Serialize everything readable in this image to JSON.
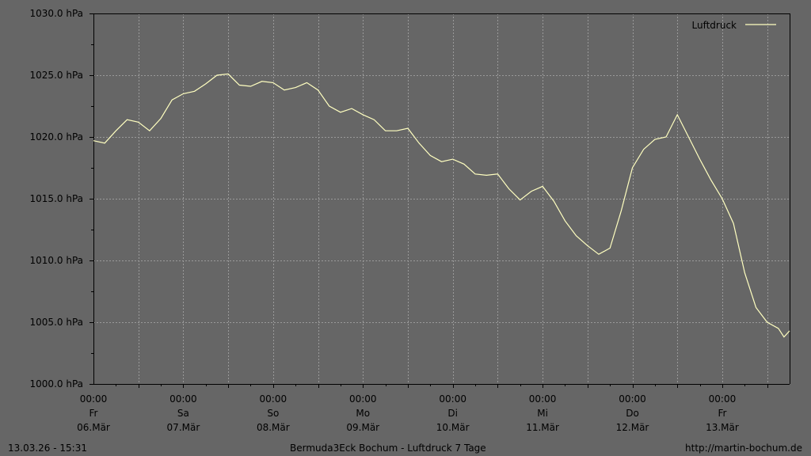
{
  "footer": {
    "timestamp": "13.03.26 - 15:31",
    "title": "Bermuda3Eck Bochum - Luftdruck 7 Tage",
    "url": "http://martin-bochum.de"
  },
  "chart_data": {
    "type": "line",
    "ylim": [
      1000,
      1030
    ],
    "y_ticks": [
      1000,
      1005,
      1010,
      1015,
      1020,
      1025,
      1030
    ],
    "y_tick_labels": [
      "1000.0 hPa",
      "1005.0 hPa",
      "1010.0 hPa",
      "1015.0 hPa",
      "1020.0 hPa",
      "1025.0 hPa",
      "1030.0 hPa"
    ],
    "x_start": "2026-03-06T00:00",
    "x_end": "2026-03-13T18:00",
    "x_ticks": [
      {
        "time": "00:00",
        "day": "Fr",
        "date": "06.Mär"
      },
      {
        "time": "00:00",
        "day": "Sa",
        "date": "07.Mär"
      },
      {
        "time": "00:00",
        "day": "So",
        "date": "08.Mär"
      },
      {
        "time": "00:00",
        "day": "Mo",
        "date": "09.Mär"
      },
      {
        "time": "00:00",
        "day": "Di",
        "date": "10.Mär"
      },
      {
        "time": "00:00",
        "day": "Mi",
        "date": "11.Mär"
      },
      {
        "time": "00:00",
        "day": "Do",
        "date": "12.Mär"
      },
      {
        "time": "00:00",
        "day": "Fr",
        "date": "13.Mär"
      }
    ],
    "grid": true,
    "legend_position": "top-right",
    "line_color": "#ffffc0",
    "series": [
      {
        "name": "Luftdruck",
        "points": [
          [
            "2026-03-06T00:00",
            1019.7
          ],
          [
            "2026-03-06T03:00",
            1019.5
          ],
          [
            "2026-03-06T06:00",
            1020.5
          ],
          [
            "2026-03-06T09:00",
            1021.4
          ],
          [
            "2026-03-06T12:00",
            1021.2
          ],
          [
            "2026-03-06T15:00",
            1020.5
          ],
          [
            "2026-03-06T18:00",
            1021.5
          ],
          [
            "2026-03-06T21:00",
            1023.0
          ],
          [
            "2026-03-07T00:00",
            1023.5
          ],
          [
            "2026-03-07T03:00",
            1023.7
          ],
          [
            "2026-03-07T06:00",
            1024.3
          ],
          [
            "2026-03-07T09:00",
            1025.0
          ],
          [
            "2026-03-07T12:00",
            1025.1
          ],
          [
            "2026-03-07T15:00",
            1024.2
          ],
          [
            "2026-03-07T18:00",
            1024.1
          ],
          [
            "2026-03-07T21:00",
            1024.5
          ],
          [
            "2026-03-08T00:00",
            1024.4
          ],
          [
            "2026-03-08T03:00",
            1023.8
          ],
          [
            "2026-03-08T06:00",
            1024.0
          ],
          [
            "2026-03-08T09:00",
            1024.4
          ],
          [
            "2026-03-08T12:00",
            1023.8
          ],
          [
            "2026-03-08T15:00",
            1022.5
          ],
          [
            "2026-03-08T18:00",
            1022.0
          ],
          [
            "2026-03-08T21:00",
            1022.3
          ],
          [
            "2026-03-09T00:00",
            1021.8
          ],
          [
            "2026-03-09T03:00",
            1021.4
          ],
          [
            "2026-03-09T06:00",
            1020.5
          ],
          [
            "2026-03-09T09:00",
            1020.5
          ],
          [
            "2026-03-09T12:00",
            1020.7
          ],
          [
            "2026-03-09T15:00",
            1019.5
          ],
          [
            "2026-03-09T18:00",
            1018.5
          ],
          [
            "2026-03-09T21:00",
            1018.0
          ],
          [
            "2026-03-10T00:00",
            1018.2
          ],
          [
            "2026-03-10T03:00",
            1017.8
          ],
          [
            "2026-03-10T06:00",
            1017.0
          ],
          [
            "2026-03-10T09:00",
            1016.9
          ],
          [
            "2026-03-10T12:00",
            1017.0
          ],
          [
            "2026-03-10T15:00",
            1015.8
          ],
          [
            "2026-03-10T18:00",
            1014.9
          ],
          [
            "2026-03-10T21:00",
            1015.6
          ],
          [
            "2026-03-11T00:00",
            1016.0
          ],
          [
            "2026-03-11T03:00",
            1014.8
          ],
          [
            "2026-03-11T06:00",
            1013.2
          ],
          [
            "2026-03-11T09:00",
            1012.0
          ],
          [
            "2026-03-11T12:00",
            1011.2
          ],
          [
            "2026-03-11T15:00",
            1010.5
          ],
          [
            "2026-03-11T18:00",
            1011.0
          ],
          [
            "2026-03-11T21:00",
            1014.0
          ],
          [
            "2026-03-12T00:00",
            1017.5
          ],
          [
            "2026-03-12T03:00",
            1019.0
          ],
          [
            "2026-03-12T06:00",
            1019.8
          ],
          [
            "2026-03-12T09:00",
            1020.0
          ],
          [
            "2026-03-12T12:00",
            1021.8
          ],
          [
            "2026-03-12T15:00",
            1020.0
          ],
          [
            "2026-03-12T18:00",
            1018.2
          ],
          [
            "2026-03-12T21:00",
            1016.5
          ],
          [
            "2026-03-13T00:00",
            1015.0
          ],
          [
            "2026-03-13T03:00",
            1013.0
          ],
          [
            "2026-03-13T06:00",
            1009.0
          ],
          [
            "2026-03-13T09:00",
            1006.2
          ],
          [
            "2026-03-13T12:00",
            1005.0
          ],
          [
            "2026-03-13T15:00",
            1004.5
          ],
          [
            "2026-03-13T16:30",
            1003.8
          ],
          [
            "2026-03-13T18:00",
            1004.3
          ]
        ]
      }
    ]
  }
}
